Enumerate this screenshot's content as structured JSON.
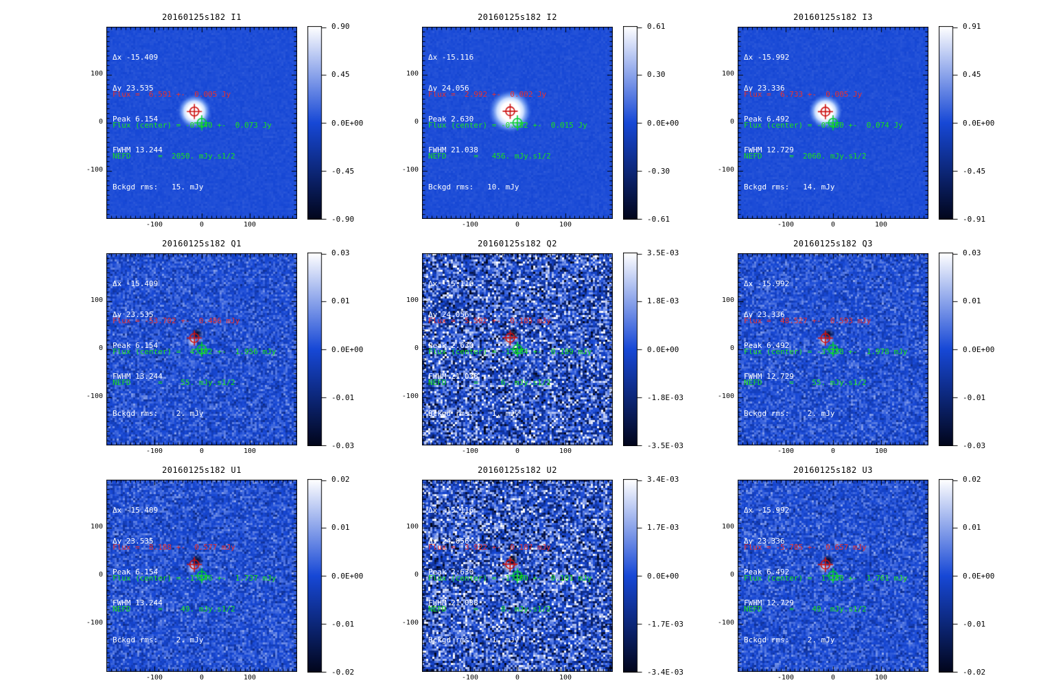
{
  "figure": {
    "id": "20160125s182",
    "background": "#ffffff",
    "text_colors": {
      "stats": "#ffffff",
      "flux": "#e63030",
      "flux_center": "#1ce01c",
      "nefd": "#1ce01c",
      "bckgd_rms": "#ffffff"
    },
    "marker_colors": {
      "fitted_peak": "#cc1111",
      "map_center": "#00cc33"
    }
  },
  "axes": {
    "x_ticks": [
      "-100",
      "0",
      "100"
    ],
    "y_ticks": [
      "100",
      "0",
      "-100"
    ],
    "xlim": [
      -200,
      200
    ],
    "ylim": [
      -200,
      200
    ],
    "grid": false
  },
  "chart_data": [
    {
      "type": "heatmap",
      "title": "20160125s182 I1",
      "stokes": "I1",
      "stats": [
        "Δx -15.409",
        "Δy 23.535",
        "Peak 6.154",
        "FWHM 13.244"
      ],
      "footer": [
        "Flux =  6.591 +-  0.005 Jy",
        "Flux (center) = -0.440 +-  0.073 Jy",
        "NEFD      =  2050. mJy.s1/2",
        "Bckgd rms:   15. mJy"
      ],
      "colorbar_ticks": [
        "0.90",
        "0.45",
        "0.0E+00",
        "-0.45",
        "-0.90"
      ],
      "colorbar_range": [
        -0.9,
        0.9
      ],
      "markers": [
        {
          "name": "fitted-peak",
          "color": "#cc1111",
          "x": -15.409,
          "y": 23.535
        },
        {
          "name": "map-center",
          "color": "#00cc33",
          "x": 0,
          "y": 0
        }
      ],
      "render": {
        "kind": "psf",
        "noise": 0.05,
        "halo_r": 26,
        "seed": 101
      }
    },
    {
      "type": "heatmap",
      "title": "20160125s182 I2",
      "stokes": "I2",
      "stats": [
        "Δx -15.116",
        "Δy 24.056",
        "Peak 2.630",
        "FWHM 21.038"
      ],
      "footer": [
        "Flux =  2.992 +-  0.002 Jy",
        "Flux (center) = -0.182 +-  0.015 Jy",
        "NEFD      =   456. mJy.s1/2",
        "Bckgd rms:   10. mJy"
      ],
      "colorbar_ticks": [
        "0.61",
        "0.30",
        "0.0E+00",
        "-0.30",
        "-0.61"
      ],
      "colorbar_range": [
        -0.61,
        0.61
      ],
      "markers": [
        {
          "name": "fitted-peak",
          "color": "#cc1111",
          "x": -15.116,
          "y": 24.056
        },
        {
          "name": "map-center",
          "color": "#00cc33",
          "x": 0,
          "y": 0
        }
      ],
      "render": {
        "kind": "psf",
        "noise": 0.05,
        "halo_r": 33,
        "seed": 102
      }
    },
    {
      "type": "heatmap",
      "title": "20160125s182 I3",
      "stokes": "I3",
      "stats": [
        "Δx -15.992",
        "Δy 23.336",
        "Peak 6.492",
        "FWHM 12.729"
      ],
      "footer": [
        "Flux =  6.733 +-  0.005 Jy",
        "Flux (center) = -0.460 +-  0.074 Jy",
        "NEFD      =  2060. mJy.s1/2",
        "Bckgd rms:   14. mJy"
      ],
      "colorbar_ticks": [
        "0.91",
        "0.45",
        "0.0E+00",
        "-0.45",
        "-0.91"
      ],
      "colorbar_range": [
        -0.91,
        0.91
      ],
      "markers": [
        {
          "name": "fitted-peak",
          "color": "#cc1111",
          "x": -15.992,
          "y": 23.336
        },
        {
          "name": "map-center",
          "color": "#00cc33",
          "x": 0,
          "y": 0
        }
      ],
      "render": {
        "kind": "psf",
        "noise": 0.05,
        "halo_r": 26,
        "seed": 103
      }
    },
    {
      "type": "heatmap",
      "title": "20160125s182 Q1",
      "stokes": "Q1",
      "stats": [
        "Δx -15.409",
        "Δy 23.535",
        "Peak 6.154",
        "FWHM 13.244"
      ],
      "footer": [
        "Flux = -53.702 +-  0.486 mJy",
        "Flux (center) =  4.302 +-  1.956 mJy",
        "NEFD      =    55. mJy.s1/2",
        "Bckgd rms:    2. mJy"
      ],
      "colorbar_ticks": [
        "0.03",
        "0.01",
        "0.0E+00",
        "-0.01",
        "-0.03"
      ],
      "colorbar_range": [
        -0.03,
        0.03
      ],
      "markers": [
        {
          "name": "fitted-peak",
          "color": "#cc1111",
          "x": -15.409,
          "y": 23.535
        },
        {
          "name": "map-center",
          "color": "#00cc33",
          "x": 0,
          "y": 0
        }
      ],
      "render": {
        "kind": "residual",
        "noise": 0.34,
        "seed": 104
      }
    },
    {
      "type": "heatmap",
      "title": "20160125s182 Q2",
      "stokes": "Q2",
      "stats": [
        "Δx -15.116",
        "Δy 24.056",
        "Peak 2.630",
        "FWHM 21.038"
      ],
      "footer": [
        "Flux =  5.502 +-  0.185 mJy",
        "Flux (center) = -1.884 +-  0.189 mJy",
        "NEFD      =     6. mJy.s1/2",
        "Bckgd rms:    1. mJy"
      ],
      "colorbar_ticks": [
        "3.5E-03",
        "1.8E-03",
        "0.0E+00",
        "-1.8E-03",
        "-3.5E-03"
      ],
      "colorbar_range": [
        -0.0035,
        0.0035
      ],
      "markers": [
        {
          "name": "fitted-peak",
          "color": "#cc1111",
          "x": -15.116,
          "y": 24.056
        },
        {
          "name": "map-center",
          "color": "#00cc33",
          "x": 0,
          "y": 0
        }
      ],
      "render": {
        "kind": "residual",
        "noise": 0.95,
        "seed": 105
      }
    },
    {
      "type": "heatmap",
      "title": "20160125s182 Q3",
      "stokes": "Q3",
      "stats": [
        "Δx -15.992",
        "Δy 23.336",
        "Peak 6.492",
        "FWHM 12.729"
      ],
      "footer": [
        "Flux =  48.527 +-  0.593 mJy",
        "Flux (center) = -3.758 +-  1.978 mJy",
        "NEFD      =    55. mJy.s1/2",
        "Bckgd rms:    2. mJy"
      ],
      "colorbar_ticks": [
        "0.03",
        "0.01",
        "0.0E+00",
        "-0.01",
        "-0.03"
      ],
      "colorbar_range": [
        -0.03,
        0.03
      ],
      "markers": [
        {
          "name": "fitted-peak",
          "color": "#cc1111",
          "x": -15.992,
          "y": 23.336
        },
        {
          "name": "map-center",
          "color": "#00cc33",
          "x": 0,
          "y": 0
        }
      ],
      "render": {
        "kind": "residual",
        "noise": 0.34,
        "seed": 106
      }
    },
    {
      "type": "heatmap",
      "title": "20160125s182 U1",
      "stokes": "U1",
      "stats": [
        "Δx -15.409",
        "Δy 23.535",
        "Peak 6.154",
        "FWHM 13.244"
      ],
      "footer": [
        "Flux =  8.188 +-  0.577 mJy",
        "Flux (center) = -1.546 +-  1.737 mJy",
        "NEFD      =    49. mJy.s1/2",
        "Bckgd rms:    2. mJy"
      ],
      "colorbar_ticks": [
        "0.02",
        "0.01",
        "0.0E+00",
        "-0.01",
        "-0.02"
      ],
      "colorbar_range": [
        -0.02,
        0.02
      ],
      "markers": [
        {
          "name": "fitted-peak",
          "color": "#cc1111",
          "x": -15.409,
          "y": 23.535
        },
        {
          "name": "map-center",
          "color": "#00cc33",
          "x": 0,
          "y": 0
        }
      ],
      "render": {
        "kind": "residual",
        "noise": 0.36,
        "seed": 107
      }
    },
    {
      "type": "heatmap",
      "title": "20160125s182 U2",
      "stokes": "U2",
      "stats": [
        "Δx -15.116",
        "Δy 24.056",
        "Peak 2.630",
        "FWHM 21.038"
      ],
      "footer": [
        "Flux =  3.922 +-  0.187 mJy",
        "Flux (center) = -1.160 +-  0.191 mJy",
        "NEFD      =     8. mJy.s1/2",
        "Bckgd rms:    1. mJy"
      ],
      "colorbar_ticks": [
        "3.4E-03",
        "1.7E-03",
        "0.0E+00",
        "-1.7E-03",
        "-3.4E-03"
      ],
      "colorbar_range": [
        -0.0034,
        0.0034
      ],
      "markers": [
        {
          "name": "fitted-peak",
          "color": "#cc1111",
          "x": -15.116,
          "y": 24.056
        },
        {
          "name": "map-center",
          "color": "#00cc33",
          "x": 0,
          "y": 0
        }
      ],
      "render": {
        "kind": "residual",
        "noise": 0.95,
        "seed": 108
      }
    },
    {
      "type": "heatmap",
      "title": "20160125s182 U3",
      "stokes": "U3",
      "stats": [
        "Δx -15.992",
        "Δy 23.336",
        "Peak 6.492",
        "FWHM 12.729"
      ],
      "footer": [
        "Flux = -5.785 +-  0.657 mJy",
        "Flux (center) =  1.188 +-  1.761 mJy",
        "NEFD      =    49. mJy.s1/2",
        "Bckgd rms:    2. mJy"
      ],
      "colorbar_ticks": [
        "0.02",
        "0.01",
        "0.0E+00",
        "-0.01",
        "-0.02"
      ],
      "colorbar_range": [
        -0.02,
        0.02
      ],
      "markers": [
        {
          "name": "fitted-peak",
          "color": "#cc1111",
          "x": -15.992,
          "y": 23.336
        },
        {
          "name": "map-center",
          "color": "#00cc33",
          "x": 0,
          "y": 0
        }
      ],
      "render": {
        "kind": "residual",
        "noise": 0.36,
        "seed": 109
      }
    }
  ]
}
